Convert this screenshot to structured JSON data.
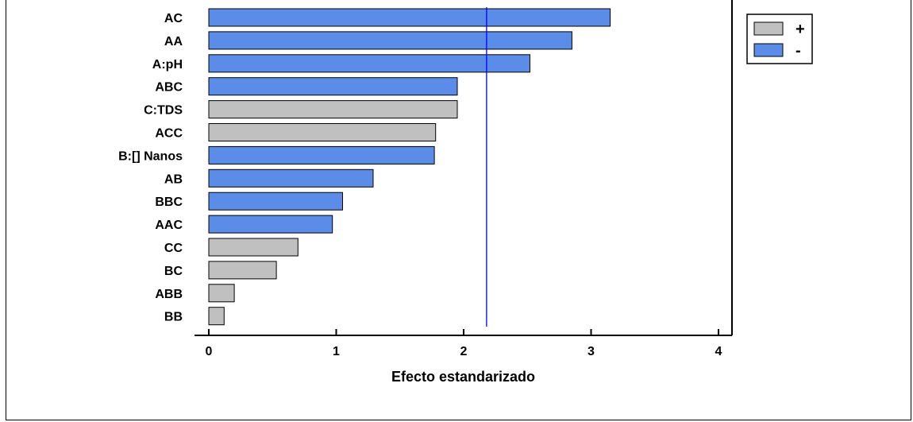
{
  "chart_data": {
    "type": "bar",
    "orientation": "horizontal",
    "xlabel": "Efecto estandarizado",
    "ylabel": "",
    "title": "",
    "xlim": [
      0,
      4
    ],
    "xticks": [
      0,
      1,
      2,
      3,
      4
    ],
    "reference_line": 2.18,
    "categories": [
      "AC",
      "AA",
      "A:pH",
      "ABC",
      "C:TDS",
      "ACC",
      "B:[] Nanos",
      "AB",
      "BBC",
      "AAC",
      "CC",
      "BC",
      "ABB",
      "BB"
    ],
    "values": [
      3.15,
      2.85,
      2.52,
      1.95,
      1.95,
      1.78,
      1.77,
      1.29,
      1.05,
      0.97,
      0.7,
      0.53,
      0.2,
      0.12
    ],
    "signs": [
      "-",
      "-",
      "-",
      "-",
      "+",
      "+",
      "-",
      "-",
      "-",
      "-",
      "+",
      "+",
      "+",
      "+"
    ],
    "legend": {
      "position": "top-right",
      "entries": [
        {
          "label": "+",
          "color": "#c0c0c0"
        },
        {
          "label": "-",
          "color": "#5b8de8"
        }
      ]
    },
    "colors": {
      "positive": "#c0c0c0",
      "negative": "#5b8de8",
      "reference_line": "#0000ff"
    },
    "grid": false
  }
}
